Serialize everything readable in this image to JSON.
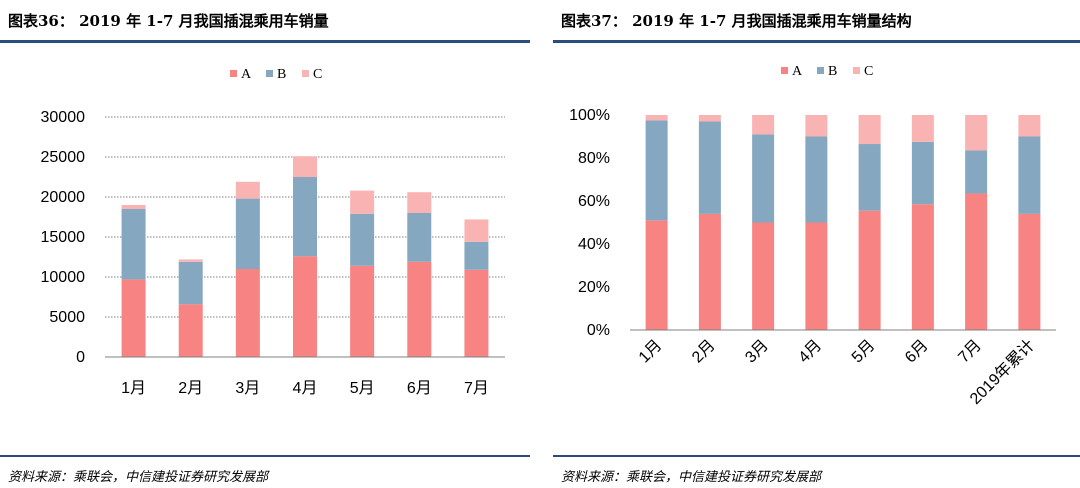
{
  "left": {
    "title": "图表36：   2019 年 1-7 月我国插混乘用车销量",
    "source": "资料来源：乘联会，中信建投证券研究发展部"
  },
  "right": {
    "title": "图表37：   2019 年 1-7 月我国插混乘用车销量结构",
    "source": "资料来源：乘联会，中信建投证券研究发展部"
  },
  "colors": {
    "A": "#f88383",
    "B": "#85a8c0",
    "C": "#f9b3b3",
    "grid": "#808080",
    "rule": "#2b4c7e"
  },
  "chart_data": [
    {
      "type": "bar",
      "stacked": true,
      "categories": [
        "1月",
        "2月",
        "3月",
        "4月",
        "5月",
        "6月",
        "7月"
      ],
      "series": [
        {
          "name": "A",
          "values": [
            9700,
            6600,
            11000,
            12600,
            11400,
            11900,
            10900
          ]
        },
        {
          "name": "B",
          "values": [
            8800,
            5300,
            8800,
            9900,
            6500,
            6100,
            3500
          ]
        },
        {
          "name": "C",
          "values": [
            500,
            300,
            2100,
            2600,
            2900,
            2600,
            2800
          ]
        }
      ],
      "yticks": [
        "0",
        "5000",
        "10000",
        "15000",
        "20000",
        "25000",
        "30000"
      ],
      "ylim": [
        0,
        30000
      ],
      "grid": true,
      "legend": "top"
    },
    {
      "type": "bar",
      "stacked": true,
      "percent": true,
      "categories": [
        "1月",
        "2月",
        "3月",
        "4月",
        "5月",
        "6月",
        "7月",
        "2019年累计"
      ],
      "series": [
        {
          "name": "A",
          "values": [
            51,
            54,
            50,
            50,
            55.5,
            58.5,
            63.5,
            54
          ]
        },
        {
          "name": "B",
          "values": [
            46.5,
            43,
            41,
            40,
            31,
            29,
            20,
            36
          ]
        },
        {
          "name": "C",
          "values": [
            2.5,
            3,
            9,
            10,
            13.5,
            12.5,
            16.5,
            10
          ]
        }
      ],
      "yticks": [
        "0%",
        "20%",
        "40%",
        "60%",
        "80%",
        "100%"
      ],
      "ylim": [
        0,
        100
      ],
      "grid": false,
      "legend": "top"
    }
  ]
}
